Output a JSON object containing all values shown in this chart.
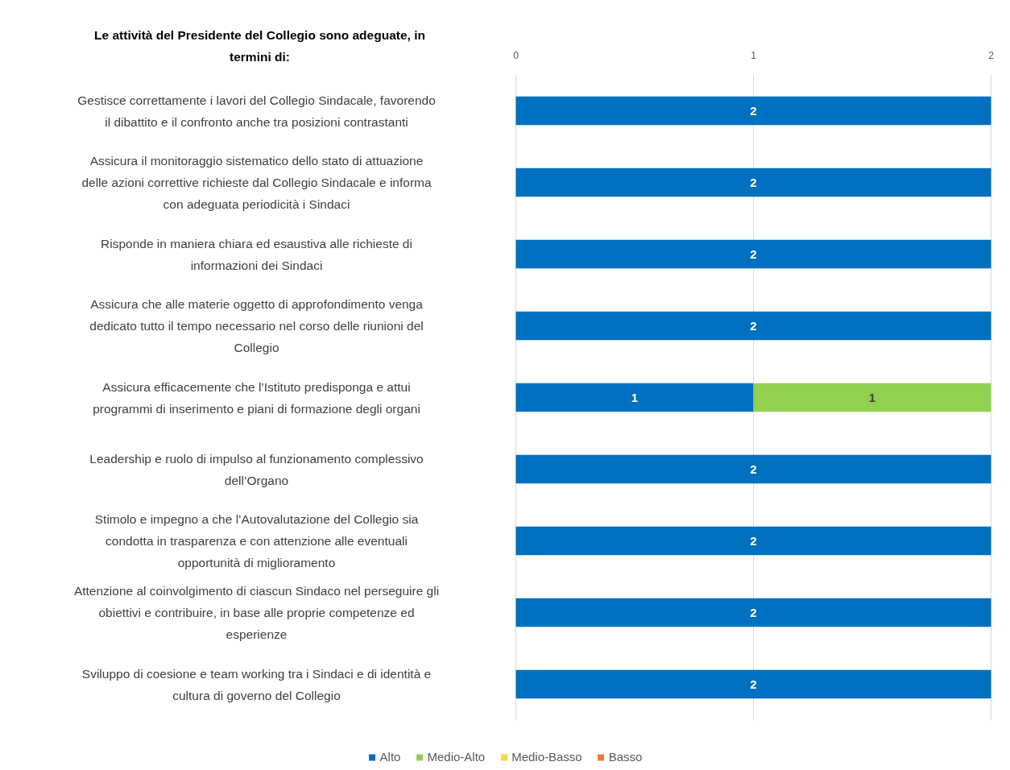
{
  "chart_data": {
    "type": "bar",
    "orientation": "horizontal",
    "stacked": true,
    "title": "Le attività del Presidente del Collegio sono adeguate, in termini di:",
    "categories": [
      "Gestisce correttamente i lavori del Collegio Sindacale, favorendo il dibattito e il confronto anche tra posizioni contrastanti",
      "Assicura il monitoraggio sistematico dello stato di attuazione delle azioni correttive richieste dal Collegio Sindacale e informa con adeguata periodicità i Sindaci",
      "Risponde in maniera chiara ed esaustiva alle richieste di informazioni dei Sindaci",
      "Assicura che alle materie oggetto di approfondimento venga dedicato tutto il tempo necessario nel corso delle riunioni del Collegio",
      "Assicura efficacemente che l’Istituto predisponga e attui programmi di inserimento e piani di formazione degli organi",
      "Leadership e ruolo di impulso al funzionamento complessivo dell’Organo",
      "Stimolo e impegno a che l’Autovalutazione del Collegio sia condotta in trasparenza e con attenzione alle eventuali opportunità di miglioramento",
      "Attenzione al coinvolgimento di ciascun Sindaco nel perseguire gli obiettivi e contribuire, in base alle proprie competenze ed esperienze",
      "Sviluppo di coesione e team working tra i Sindaci e di identità e cultura di governo del Collegio"
    ],
    "series": [
      {
        "name": "Alto",
        "color": "#0070c0",
        "values": [
          2,
          2,
          2,
          2,
          1,
          2,
          2,
          2,
          2
        ],
        "value_labels": [
          "2",
          "2",
          "2",
          "2",
          "1",
          "2",
          "2",
          "2",
          "2"
        ]
      },
      {
        "name": "Medio-Alto",
        "color": "#92d050",
        "values": [
          0,
          0,
          0,
          0,
          1,
          0,
          0,
          0,
          0
        ],
        "value_labels": [
          null,
          null,
          null,
          null,
          "1",
          null,
          null,
          null,
          null
        ]
      },
      {
        "name": "Medio-Basso",
        "color": "#ffd740",
        "values": [
          0,
          0,
          0,
          0,
          0,
          0,
          0,
          0,
          0
        ]
      },
      {
        "name": "Basso",
        "color": "#ed7d31",
        "values": [
          0,
          0,
          0,
          0,
          0,
          0,
          0,
          0,
          0
        ]
      }
    ],
    "xlim": [
      0,
      2
    ],
    "xticks": [
      0,
      1,
      2
    ],
    "grid": "x",
    "legend": "bottom"
  }
}
